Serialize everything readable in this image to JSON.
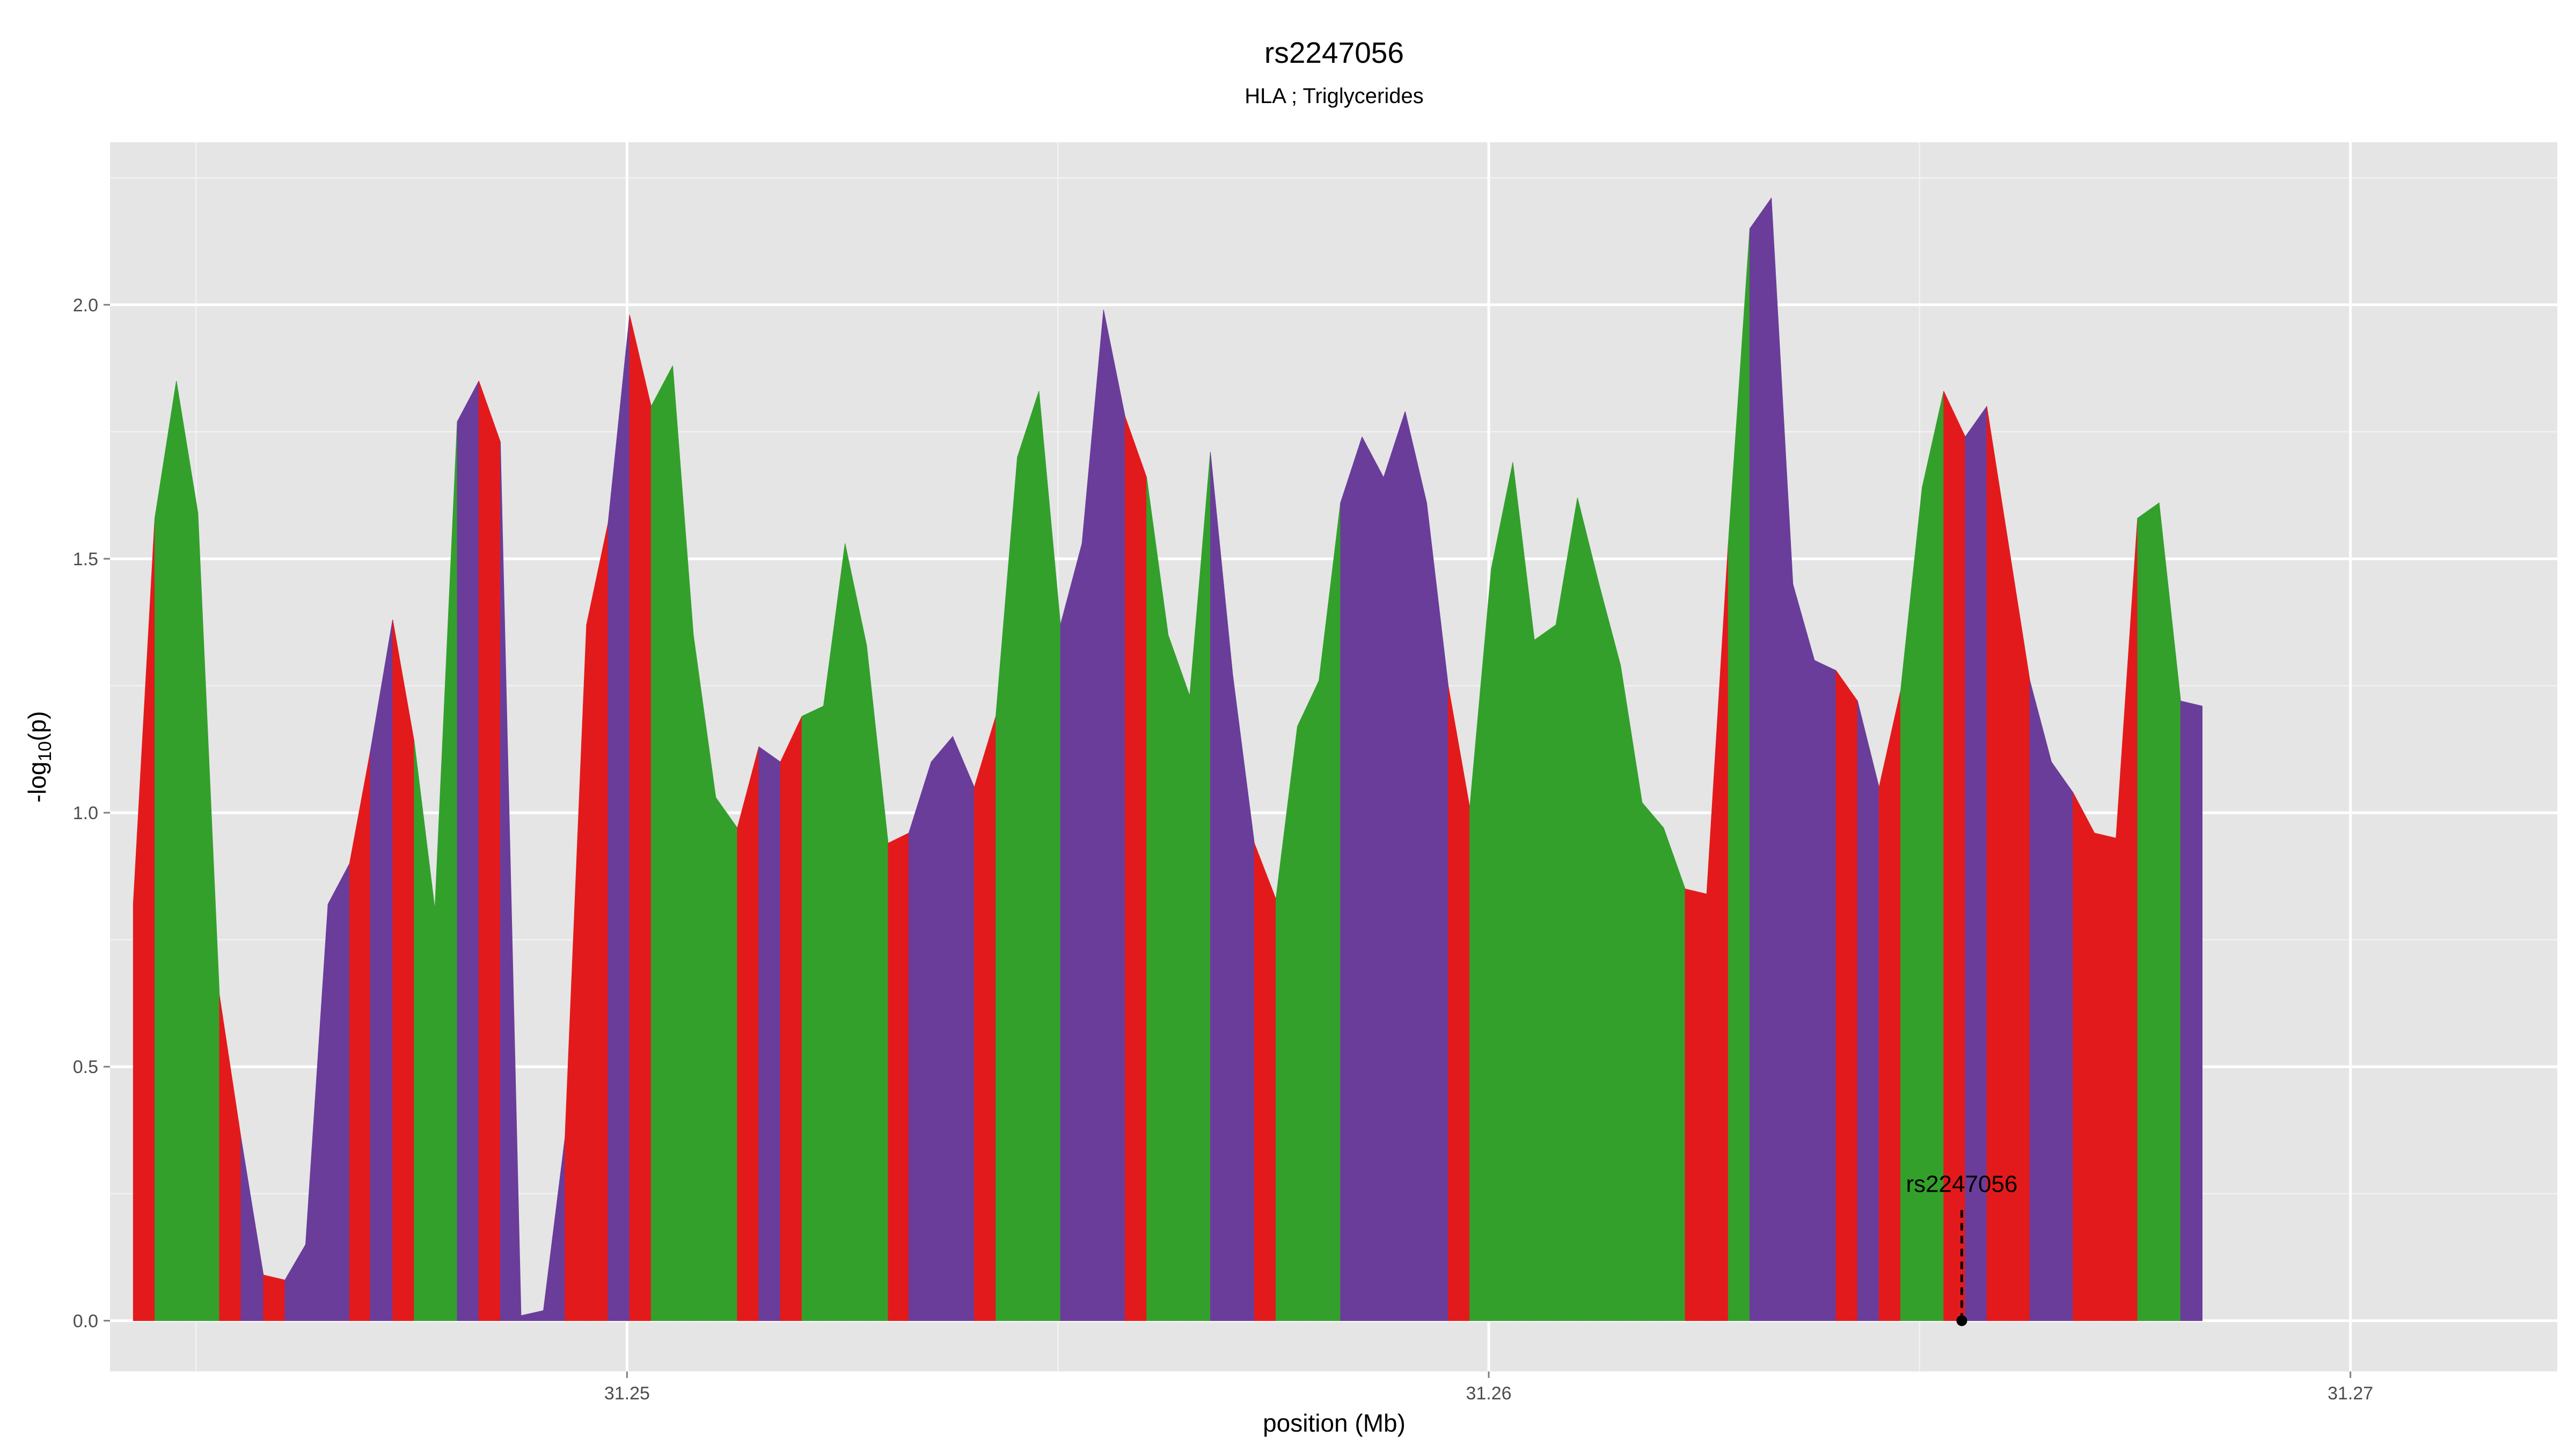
{
  "chart_data": {
    "type": "area",
    "title": "rs2247056",
    "subtitle": "HLA ; Triglycerides",
    "xlabel": "position (Mb)",
    "ylabel_main": "-log",
    "ylabel_sub": "10",
    "ylabel_tail": "(p)",
    "xlim": [
      31.244,
      31.2724
    ],
    "ylim": [
      -0.1,
      2.32
    ],
    "x_major_ticks": [
      31.25,
      31.26,
      31.27
    ],
    "x_minor_ticks": [
      31.245,
      31.255,
      31.265
    ],
    "x_tick_labels": [
      "31.25",
      "31.26",
      "31.27"
    ],
    "y_major_ticks": [
      0,
      0.5,
      1,
      1.5,
      2
    ],
    "y_minor_ticks": [
      0.25,
      0.75,
      1.25,
      1.75,
      2.25
    ],
    "y_tick_labels": [
      "0.0",
      "0.5",
      "1.0",
      "1.5",
      "2.0"
    ],
    "palette": [
      "#e31a1c",
      "#33a02c",
      "#6a3d9a"
    ],
    "colors": [
      0,
      1,
      1,
      1,
      0,
      2,
      0,
      2,
      2,
      2,
      0,
      2,
      0,
      1,
      1,
      2,
      0,
      2,
      2,
      2,
      0,
      0,
      2,
      0,
      1,
      1,
      1,
      1,
      0,
      2,
      0,
      1,
      1,
      1,
      1,
      0,
      2,
      2,
      2,
      0,
      1,
      1,
      1,
      2,
      2,
      2,
      0,
      1,
      1,
      1,
      2,
      2,
      0,
      1,
      1,
      1,
      2,
      2,
      2,
      2,
      2,
      0,
      1,
      1,
      1,
      1,
      1,
      1,
      1,
      1,
      1,
      1,
      0,
      0,
      1,
      2,
      2,
      2,
      2,
      0,
      2,
      0,
      1,
      1,
      0,
      2,
      0,
      0,
      2,
      2,
      0,
      0,
      0,
      1,
      1,
      2,
      0
    ],
    "x": [
      31.24427,
      31.24452,
      31.24477,
      31.24502,
      31.24527,
      31.24552,
      31.24578,
      31.24603,
      31.24627,
      31.24653,
      31.24678,
      31.24702,
      31.24728,
      31.24753,
      31.24777,
      31.24803,
      31.24828,
      31.24853,
      31.24877,
      31.24903,
      31.24928,
      31.24953,
      31.24978,
      31.25003,
      31.25028,
      31.25053,
      31.25077,
      31.25103,
      31.25128,
      31.25153,
      31.25178,
      31.25203,
      31.25228,
      31.25253,
      31.25278,
      31.25303,
      31.25327,
      31.25353,
      31.25378,
      31.25403,
      31.25428,
      31.25453,
      31.25478,
      31.25503,
      31.25528,
      31.25553,
      31.25578,
      31.25603,
      31.25628,
      31.25653,
      31.25677,
      31.25703,
      31.25728,
      31.25753,
      31.25778,
      31.25803,
      31.25828,
      31.25853,
      31.25878,
      31.25903,
      31.25928,
      31.25953,
      31.25978,
      31.26003,
      31.26028,
      31.26053,
      31.26078,
      31.26103,
      31.26128,
      31.26153,
      31.26178,
      31.26203,
      31.26228,
      31.26253,
      31.26278,
      31.26303,
      31.26328,
      31.26353,
      31.26378,
      31.26403,
      31.26428,
      31.26453,
      31.26478,
      31.26503,
      31.26528,
      31.26553,
      31.26578,
      31.26603,
      31.26628,
      31.26653,
      31.26678,
      31.26703,
      31.26728,
      31.26753,
      31.26778,
      31.26803,
      31.26828
    ],
    "y": [
      0.82,
      1.58,
      1.85,
      1.59,
      0.64,
      0.36,
      0.09,
      0.08,
      0.15,
      0.82,
      0.9,
      1.12,
      1.38,
      1.14,
      0.81,
      1.77,
      1.85,
      1.73,
      0.01,
      0.02,
      0.36,
      1.37,
      1.57,
      1.98,
      1.8,
      1.88,
      1.35,
      1.03,
      0.97,
      1.13,
      1.1,
      1.19,
      1.21,
      1.53,
      1.33,
      0.94,
      0.96,
      1.1,
      1.15,
      1.05,
      1.19,
      1.7,
      1.83,
      1.37,
      1.53,
      1.99,
      1.78,
      1.66,
      1.35,
      1.23,
      1.71,
      1.27,
      0.94,
      0.83,
      1.17,
      1.26,
      1.61,
      1.74,
      1.66,
      1.79,
      1.61,
      1.25,
      1.01,
      1.48,
      1.69,
      1.34,
      1.37,
      1.62,
      1.45,
      1.29,
      1.02,
      0.97,
      0.85,
      0.84,
      1.53,
      2.15,
      2.21,
      1.45,
      1.3,
      1.28,
      1.22,
      1.05,
      1.24,
      1.64,
      1.83,
      1.74,
      1.8,
      1.53,
      1.26,
      1.1,
      1.04,
      0.96,
      0.95,
      1.58,
      1.61,
      1.22,
      1.21
    ],
    "annotation": {
      "label": "rs2247056",
      "x": 31.26549,
      "y": 0
    }
  }
}
